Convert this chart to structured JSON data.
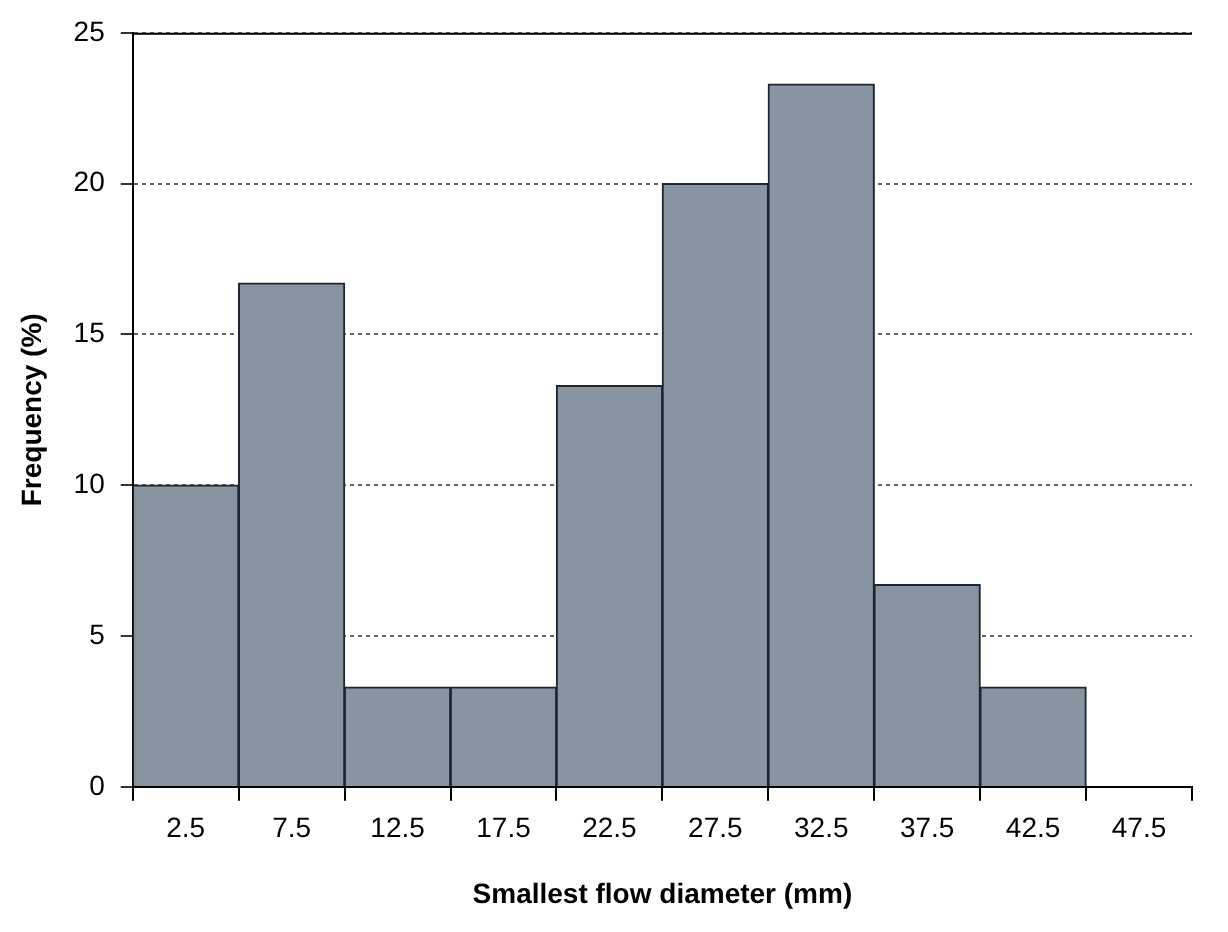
{
  "chart_data": {
    "type": "histogram",
    "xlabel": "Smallest flow diameter (mm)",
    "ylabel": "Frequency (%)",
    "bins": [
      0,
      5,
      10,
      15,
      20,
      25,
      30,
      35,
      40,
      45
    ],
    "values": [
      10,
      16.7,
      3.3,
      3.3,
      13.3,
      20,
      23.3,
      6.7,
      3.3
    ],
    "color": "#8895a0",
    "xlim": [
      0,
      50
    ],
    "xticks": [
      {
        "value": 0,
        "label": null
      },
      2.5,
      {
        "value": 5,
        "label": null
      },
      7.5,
      {
        "value": 10,
        "label": null
      },
      12.5,
      {
        "value": 15,
        "label": null
      },
      17.5,
      {
        "value": 20,
        "label": null
      },
      22.5,
      {
        "value": 25,
        "label": null
      },
      27.5,
      {
        "value": 30,
        "label": null
      },
      32.5,
      {
        "value": 35,
        "label": null
      },
      37.5,
      {
        "value": 40,
        "label": null
      },
      42.5,
      {
        "value": 45,
        "label": null
      },
      47.5,
      {
        "value": 50,
        "label": null
      }
    ],
    "ylim": [
      0,
      25
    ],
    "yticks": [
      0,
      5,
      10,
      15,
      20,
      25
    ],
    "grid": "y",
    "legend": false
  }
}
